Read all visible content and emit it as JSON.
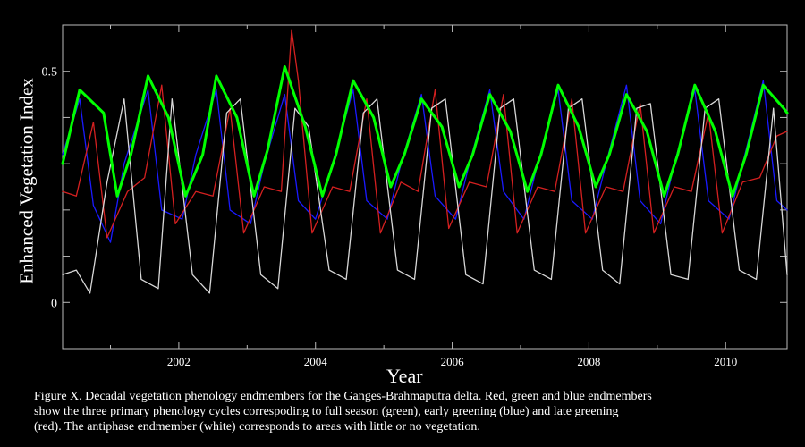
{
  "chart_data": {
    "type": "line",
    "title": "",
    "xlabel": "Year",
    "ylabel": "Enhanced Vegetation Index",
    "xlim": [
      2000.3,
      2010.9
    ],
    "ylim": [
      -0.1,
      0.6
    ],
    "x_ticks": [
      2002,
      2004,
      2006,
      2008,
      2010
    ],
    "y_tick_labels": [
      {
        "value": 0.5,
        "label": "0.5"
      },
      {
        "value": 0.0,
        "label": "0"
      }
    ],
    "grid": false,
    "series": [
      {
        "color": "#00ff00",
        "x": [
          2000.3,
          2000.55,
          2000.9,
          2001.1,
          2001.3,
          2001.55,
          2001.85,
          2002.1,
          2002.35,
          2002.55,
          2002.85,
          2003.1,
          2003.3,
          2003.55,
          2003.85,
          2004.1,
          2004.3,
          2004.55,
          2004.85,
          2005.1,
          2005.3,
          2005.55,
          2005.85,
          2006.1,
          2006.3,
          2006.55,
          2006.85,
          2007.1,
          2007.3,
          2007.55,
          2007.85,
          2008.1,
          2008.3,
          2008.55,
          2008.85,
          2009.1,
          2009.3,
          2009.55,
          2009.85,
          2010.1,
          2010.3,
          2010.55,
          2010.85,
          2010.9
        ],
        "y": [
          0.3,
          0.46,
          0.41,
          0.23,
          0.32,
          0.49,
          0.4,
          0.23,
          0.32,
          0.49,
          0.4,
          0.23,
          0.33,
          0.51,
          0.38,
          0.23,
          0.32,
          0.48,
          0.4,
          0.25,
          0.32,
          0.44,
          0.38,
          0.25,
          0.32,
          0.45,
          0.37,
          0.24,
          0.32,
          0.47,
          0.38,
          0.25,
          0.32,
          0.45,
          0.37,
          0.23,
          0.32,
          0.47,
          0.37,
          0.23,
          0.32,
          0.47,
          0.42,
          0.41
        ]
      },
      {
        "color": "#1a1aff",
        "x": [
          2000.3,
          2000.55,
          2000.75,
          2001.0,
          2001.2,
          2001.55,
          2001.75,
          2002.05,
          2002.25,
          2002.55,
          2002.75,
          2003.05,
          2003.25,
          2003.55,
          2003.75,
          2004.0,
          2004.25,
          2004.55,
          2004.75,
          2005.05,
          2005.25,
          2005.55,
          2005.75,
          2006.05,
          2006.25,
          2006.55,
          2006.75,
          2007.05,
          2007.25,
          2007.55,
          2007.75,
          2008.05,
          2008.25,
          2008.55,
          2008.75,
          2009.05,
          2009.25,
          2009.55,
          2009.75,
          2010.05,
          2010.25,
          2010.55,
          2010.75,
          2010.9
        ],
        "y": [
          0.32,
          0.44,
          0.21,
          0.13,
          0.3,
          0.46,
          0.2,
          0.18,
          0.32,
          0.46,
          0.2,
          0.17,
          0.3,
          0.45,
          0.22,
          0.18,
          0.3,
          0.46,
          0.22,
          0.18,
          0.3,
          0.45,
          0.23,
          0.18,
          0.3,
          0.46,
          0.24,
          0.18,
          0.3,
          0.46,
          0.22,
          0.18,
          0.3,
          0.47,
          0.22,
          0.17,
          0.3,
          0.46,
          0.22,
          0.18,
          0.3,
          0.48,
          0.22,
          0.2
        ]
      },
      {
        "color": "#d42020",
        "x": [
          2000.3,
          2000.5,
          2000.75,
          2000.95,
          2001.25,
          2001.5,
          2001.75,
          2001.95,
          2002.25,
          2002.5,
          2002.75,
          2002.95,
          2003.25,
          2003.5,
          2003.65,
          2003.75,
          2003.95,
          2004.25,
          2004.5,
          2004.75,
          2004.95,
          2005.25,
          2005.5,
          2005.75,
          2005.95,
          2006.25,
          2006.5,
          2006.75,
          2006.95,
          2007.25,
          2007.5,
          2007.75,
          2007.95,
          2008.25,
          2008.5,
          2008.75,
          2008.95,
          2009.25,
          2009.5,
          2009.75,
          2009.95,
          2010.25,
          2010.5,
          2010.75,
          2010.9
        ],
        "y": [
          0.24,
          0.23,
          0.39,
          0.14,
          0.24,
          0.27,
          0.47,
          0.17,
          0.24,
          0.23,
          0.42,
          0.15,
          0.25,
          0.24,
          0.59,
          0.48,
          0.15,
          0.25,
          0.24,
          0.44,
          0.15,
          0.26,
          0.24,
          0.46,
          0.16,
          0.26,
          0.25,
          0.45,
          0.15,
          0.25,
          0.24,
          0.44,
          0.15,
          0.25,
          0.24,
          0.43,
          0.15,
          0.25,
          0.24,
          0.41,
          0.15,
          0.26,
          0.27,
          0.36,
          0.37
        ]
      },
      {
        "color": "#d8d8d8",
        "x": [
          2000.3,
          2000.5,
          2000.7,
          2000.95,
          2001.2,
          2001.45,
          2001.7,
          2001.9,
          2002.2,
          2002.45,
          2002.7,
          2002.9,
          2003.2,
          2003.45,
          2003.7,
          2003.9,
          2004.2,
          2004.45,
          2004.7,
          2004.9,
          2005.2,
          2005.45,
          2005.7,
          2005.9,
          2006.2,
          2006.45,
          2006.7,
          2006.9,
          2007.2,
          2007.45,
          2007.7,
          2007.9,
          2008.2,
          2008.45,
          2008.7,
          2008.9,
          2009.2,
          2009.45,
          2009.7,
          2009.9,
          2010.2,
          2010.45,
          2010.7,
          2010.9
        ],
        "y": [
          0.06,
          0.07,
          0.02,
          0.26,
          0.44,
          0.05,
          0.03,
          0.44,
          0.06,
          0.02,
          0.41,
          0.44,
          0.06,
          0.03,
          0.42,
          0.38,
          0.07,
          0.05,
          0.41,
          0.44,
          0.07,
          0.05,
          0.42,
          0.44,
          0.06,
          0.04,
          0.42,
          0.44,
          0.07,
          0.05,
          0.42,
          0.44,
          0.07,
          0.04,
          0.42,
          0.43,
          0.06,
          0.05,
          0.42,
          0.44,
          0.07,
          0.05,
          0.42,
          0.06
        ]
      }
    ],
    "xlim_note": ""
  },
  "labels": {
    "ylabel": "Enhanced Vegetation Index",
    "xlabel": "Year",
    "caption_lines": [
      "Figure X.  Decadal vegetation phenology endmembers for the Ganges-Brahmaputra delta.  Red, green and blue endmembers",
      "show the three primary phenology cycles correspoding to full season (green), early greening (blue) and late greening",
      "(red).  The antiphase  endmember (white) corresponds to areas with little or no vegetation."
    ]
  }
}
